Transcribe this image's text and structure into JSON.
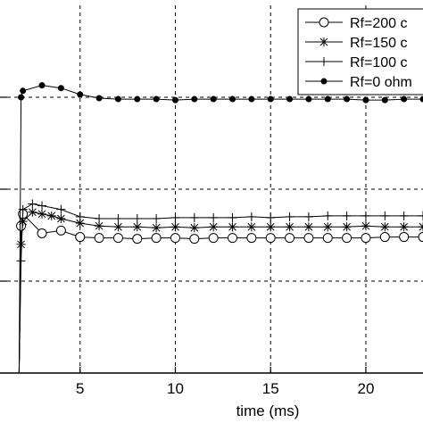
{
  "chart_data": {
    "type": "line",
    "title": "",
    "xlabel": "time (ms)",
    "ylabel": "",
    "xlim": [
      0,
      23
    ],
    "ylim": [
      0,
      4
    ],
    "x_ticks": [
      5,
      10,
      15,
      20
    ],
    "x_tick_labels": [
      "5",
      "10",
      "15",
      "20"
    ],
    "y_gridlines": [
      1,
      2,
      3
    ],
    "grid": true,
    "grid_style": "dashed",
    "legend_position": "top-right",
    "series": [
      {
        "name": "Rf=200 c",
        "marker": "circle",
        "x": [
          1.8,
          1.9,
          2.0,
          3.0,
          4.0,
          5.0,
          6.0,
          7.0,
          8.0,
          9.0,
          10.0,
          11.0,
          12.0,
          13.0,
          14.0,
          15.0,
          16.0,
          17.0,
          18.0,
          19.0,
          20.0,
          21.0,
          22.0,
          23.0
        ],
        "y": [
          0.0,
          1.6,
          1.73,
          1.52,
          1.55,
          1.48,
          1.47,
          1.47,
          1.46,
          1.47,
          1.47,
          1.46,
          1.47,
          1.47,
          1.47,
          1.47,
          1.47,
          1.47,
          1.47,
          1.47,
          1.47,
          1.48,
          1.48,
          1.48
        ]
      },
      {
        "name": "Rf=150 c",
        "marker": "asterisk",
        "x": [
          1.8,
          1.9,
          2.0,
          2.5,
          3.0,
          3.5,
          4.0,
          5.0,
          6.0,
          7.0,
          8.0,
          9.0,
          10.0,
          11.0,
          12.0,
          13.0,
          14.0,
          15.0,
          16.0,
          17.0,
          18.0,
          19.0,
          20.0,
          21.0,
          22.0,
          23.0
        ],
        "y": [
          0.0,
          1.4,
          1.65,
          1.75,
          1.73,
          1.71,
          1.68,
          1.63,
          1.6,
          1.59,
          1.59,
          1.58,
          1.59,
          1.58,
          1.59,
          1.59,
          1.59,
          1.59,
          1.59,
          1.59,
          1.59,
          1.59,
          1.6,
          1.59,
          1.59,
          1.59
        ]
      },
      {
        "name": "Rf=100 c",
        "marker": "plus",
        "x": [
          1.8,
          1.9,
          2.0,
          2.5,
          3.0,
          4.0,
          5.0,
          6.0,
          7.0,
          8.0,
          9.0,
          10.0,
          11.0,
          12.0,
          13.0,
          14.0,
          15.0,
          16.0,
          17.0,
          18.0,
          19.0,
          20.0,
          21.0,
          22.0,
          23.0
        ],
        "y": [
          0.0,
          1.22,
          1.78,
          1.84,
          1.82,
          1.78,
          1.7,
          1.68,
          1.68,
          1.68,
          1.68,
          1.69,
          1.69,
          1.69,
          1.69,
          1.7,
          1.69,
          1.7,
          1.7,
          1.71,
          1.71,
          1.71,
          1.71,
          1.71,
          1.71
        ]
      },
      {
        "name": "Rf=0 ohm",
        "marker": "filled-circle",
        "x": [
          1.8,
          1.9,
          2.0,
          3.0,
          4.0,
          5.0,
          6.0,
          7.0,
          8.0,
          9.0,
          10.0,
          11.0,
          12.0,
          13.0,
          14.0,
          15.0,
          16.0,
          17.0,
          18.0,
          19.0,
          20.0,
          21.0,
          22.0,
          23.0
        ],
        "y": [
          0.0,
          3.0,
          3.07,
          3.13,
          3.1,
          3.03,
          2.99,
          2.98,
          2.98,
          2.98,
          2.97,
          2.98,
          2.98,
          2.98,
          2.98,
          2.98,
          2.98,
          2.98,
          2.98,
          2.98,
          2.97,
          2.97,
          2.98,
          2.98
        ]
      }
    ]
  }
}
